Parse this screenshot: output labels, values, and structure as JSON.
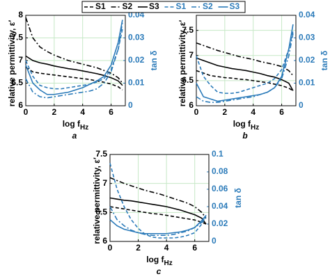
{
  "chart_data": [
    {
      "type": "line",
      "label": "a",
      "xlabel": "log f",
      "xlabel_sub": "Hz",
      "ylabel": "relative permittivity, ε′",
      "y2label": "tan δ",
      "x": [
        0,
        0.5,
        1,
        1.5,
        2,
        2.5,
        3,
        3.5,
        4,
        4.5,
        5,
        5.5,
        6,
        6.5,
        6.8
      ],
      "xlim": [
        0,
        7
      ],
      "xticks": [
        0,
        2,
        4,
        6
      ],
      "ylim": [
        6,
        8
      ],
      "yticks": [
        6,
        6.5,
        7,
        7.5,
        8
      ],
      "y2lim": [
        0,
        0.04
      ],
      "y2ticks": [
        0,
        0.01,
        0.02,
        0.03,
        0.04
      ],
      "grid": true,
      "grid_color": "#c6e8c6",
      "series": [
        {
          "name": "S1",
          "color": "#000000",
          "dash": "dashed",
          "values": [
            6.85,
            6.75,
            6.72,
            6.7,
            6.68,
            6.66,
            6.64,
            6.62,
            6.6,
            6.58,
            6.55,
            6.52,
            6.48,
            6.42,
            6.35
          ]
        },
        {
          "name": "S2",
          "color": "#000000",
          "dash": "dashdot",
          "values": [
            7.95,
            7.5,
            7.3,
            7.2,
            7.12,
            7.06,
            7.0,
            6.96,
            6.92,
            6.88,
            6.84,
            6.78,
            6.72,
            6.62,
            6.5
          ]
        },
        {
          "name": "S3",
          "color": "#000000",
          "dash": "solid",
          "values": [
            7.1,
            7.0,
            6.95,
            6.92,
            6.88,
            6.85,
            6.82,
            6.8,
            6.77,
            6.74,
            6.71,
            6.67,
            6.62,
            6.55,
            6.45
          ]
        },
        {
          "name": "S1",
          "color": "#2a7ab9",
          "dash": "dashed",
          "axis": "y2",
          "values": [
            0.02,
            0.013,
            0.009,
            0.008,
            0.0075,
            0.0075,
            0.008,
            0.0085,
            0.009,
            0.0095,
            0.0105,
            0.012,
            0.016,
            0.025,
            0.034
          ]
        },
        {
          "name": "S2",
          "color": "#2a7ab9",
          "dash": "dashdot",
          "axis": "y2",
          "values": [
            0.012,
            0.006,
            0.004,
            0.0035,
            0.004,
            0.0045,
            0.005,
            0.0055,
            0.006,
            0.0065,
            0.0075,
            0.01,
            0.015,
            0.025,
            0.037
          ]
        },
        {
          "name": "S3",
          "color": "#2a7ab9",
          "dash": "solid",
          "axis": "y2",
          "values": [
            0.018,
            0.01,
            0.007,
            0.005,
            0.005,
            0.0055,
            0.006,
            0.007,
            0.008,
            0.0095,
            0.011,
            0.013,
            0.018,
            0.028,
            0.038
          ]
        }
      ]
    },
    {
      "type": "line",
      "label": "b",
      "xlabel": "log f",
      "xlabel_sub": "Hz",
      "ylabel": "relative permittivity, ε′",
      "y2label": "tan δ",
      "x": [
        0,
        0.5,
        1,
        1.5,
        2,
        2.5,
        3,
        3.5,
        4,
        4.5,
        5,
        5.5,
        6,
        6.5,
        6.8
      ],
      "xlim": [
        0,
        7
      ],
      "xticks": [
        0,
        2,
        4,
        6
      ],
      "ylim": [
        6,
        7.8
      ],
      "yticks": [
        6,
        6.5,
        7,
        7.5
      ],
      "y2lim": [
        0,
        0.04
      ],
      "y2ticks": [
        0,
        0.01,
        0.02,
        0.03,
        0.04
      ],
      "grid": true,
      "grid_color": "#c6e8c6",
      "series": [
        {
          "name": "S1",
          "color": "#000000",
          "dash": "dashed",
          "values": [
            6.7,
            6.65,
            6.6,
            6.58,
            6.56,
            6.55,
            6.53,
            6.52,
            6.5,
            6.48,
            6.46,
            6.43,
            6.4,
            6.35,
            6.3
          ]
        },
        {
          "name": "S2",
          "color": "#000000",
          "dash": "dashdot",
          "values": [
            7.25,
            7.2,
            7.15,
            7.1,
            7.06,
            7.02,
            6.98,
            6.95,
            6.92,
            6.88,
            6.85,
            6.82,
            6.78,
            6.7,
            6.6
          ]
        },
        {
          "name": "S3",
          "color": "#000000",
          "dash": "solid",
          "values": [
            6.95,
            6.9,
            6.85,
            6.8,
            6.77,
            6.74,
            6.72,
            6.7,
            6.67,
            6.64,
            6.6,
            6.57,
            6.52,
            6.45,
            6.3
          ]
        },
        {
          "name": "S1",
          "color": "#2a7ab9",
          "dash": "dashed",
          "axis": "y2",
          "values": [
            0.022,
            0.013,
            0.009,
            0.006,
            0.0055,
            0.0055,
            0.006,
            0.007,
            0.008,
            0.009,
            0.01,
            0.012,
            0.016,
            0.025,
            0.033
          ]
        },
        {
          "name": "S2",
          "color": "#2a7ab9",
          "dash": "dashdot",
          "axis": "y2",
          "values": [
            0.004,
            0.002,
            0.0015,
            0.0015,
            0.002,
            0.0025,
            0.003,
            0.0035,
            0.004,
            0.005,
            0.006,
            0.008,
            0.012,
            0.022,
            0.032
          ]
        },
        {
          "name": "S3",
          "color": "#2a7ab9",
          "dash": "solid",
          "axis": "y2",
          "values": [
            0.01,
            0.004,
            0.003,
            0.002,
            0.0025,
            0.003,
            0.0035,
            0.004,
            0.0045,
            0.005,
            0.006,
            0.008,
            0.013,
            0.025,
            0.036
          ]
        }
      ]
    },
    {
      "type": "line",
      "label": "c",
      "xlabel": "log f",
      "xlabel_sub": "Hz",
      "ylabel": "relative permittivity, ε′",
      "y2label": "tan δ",
      "x": [
        0,
        0.5,
        1,
        1.5,
        2,
        2.5,
        3,
        3.5,
        4,
        4.5,
        5,
        5.5,
        6,
        6.5,
        6.8
      ],
      "xlim": [
        0,
        7
      ],
      "xticks": [
        0,
        2,
        4,
        6
      ],
      "ylim": [
        6,
        7.5
      ],
      "yticks": [
        6,
        6.5,
        7,
        7.5
      ],
      "y2lim": [
        0,
        0.1
      ],
      "y2ticks": [
        0,
        0.02,
        0.04,
        0.06,
        0.08,
        0.1
      ],
      "grid": true,
      "grid_color": "#c6e8c6",
      "series": [
        {
          "name": "S1",
          "color": "#000000",
          "dash": "dashed",
          "values": [
            6.6,
            6.58,
            6.56,
            6.54,
            6.52,
            6.5,
            6.48,
            6.47,
            6.45,
            6.43,
            6.41,
            6.39,
            6.37,
            6.33,
            6.3
          ]
        },
        {
          "name": "S2",
          "color": "#000000",
          "dash": "dashdot",
          "values": [
            7.1,
            7.05,
            7.0,
            6.96,
            6.92,
            6.88,
            6.85,
            6.82,
            6.78,
            6.74,
            6.7,
            6.66,
            6.6,
            6.5,
            6.4
          ]
        },
        {
          "name": "S3",
          "color": "#000000",
          "dash": "solid",
          "values": [
            6.75,
            6.73,
            6.71,
            6.7,
            6.68,
            6.66,
            6.64,
            6.62,
            6.6,
            6.57,
            6.54,
            6.5,
            6.46,
            6.4,
            6.3
          ]
        },
        {
          "name": "S1",
          "color": "#2a7ab9",
          "dash": "dashed",
          "axis": "y2",
          "values": [
            0.09,
            0.06,
            0.04,
            0.025,
            0.015,
            0.008,
            0.005,
            0.004,
            0.004,
            0.004,
            0.005,
            0.007,
            0.01,
            0.02,
            0.03
          ]
        },
        {
          "name": "S2",
          "color": "#2a7ab9",
          "dash": "dashdot",
          "axis": "y2",
          "values": [
            0.04,
            0.025,
            0.018,
            0.013,
            0.01,
            0.008,
            0.007,
            0.007,
            0.007,
            0.008,
            0.01,
            0.012,
            0.016,
            0.022,
            0.028
          ]
        },
        {
          "name": "S3",
          "color": "#2a7ab9",
          "dash": "solid",
          "axis": "y2",
          "values": [
            0.025,
            0.018,
            0.014,
            0.012,
            0.01,
            0.009,
            0.009,
            0.009,
            0.009,
            0.01,
            0.011,
            0.013,
            0.016,
            0.024,
            0.03
          ]
        }
      ]
    }
  ]
}
